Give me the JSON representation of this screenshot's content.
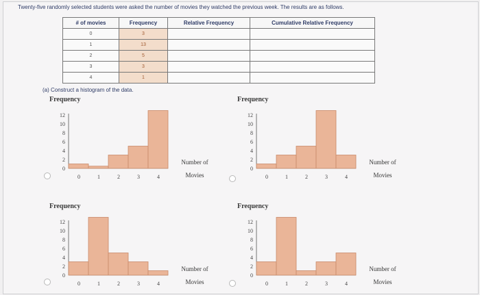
{
  "question": "Twenty-five randomly selected students were asked the number of movies they watched the previous week. The results are as follows.",
  "table": {
    "headers": [
      "# of movies",
      "Frequency",
      "Relative Frequency",
      "Cumulative Relative Frequency"
    ],
    "rows": [
      [
        "0",
        "3",
        "",
        ""
      ],
      [
        "1",
        "13",
        "",
        ""
      ],
      [
        "2",
        "5",
        "",
        ""
      ],
      [
        "3",
        "3",
        "",
        ""
      ],
      [
        "4",
        "1",
        "",
        ""
      ]
    ]
  },
  "part_a": "(a) Construct a histogram of the data.",
  "chart_data": [
    {
      "type": "bar",
      "ylabel": "Frequency",
      "xlabel": "Number of Movies",
      "xlabel_lines": [
        "Number of",
        "Movies"
      ],
      "categories": [
        "0",
        "1",
        "2",
        "3",
        "4"
      ],
      "values": [
        1,
        0.5,
        3,
        5,
        13
      ],
      "ylim": [
        0,
        12
      ],
      "yticks": [
        "12",
        "10",
        "8",
        "6",
        "4",
        "2",
        "0"
      ],
      "xticks": [
        "0",
        "1",
        "2",
        "3",
        "4"
      ]
    },
    {
      "type": "bar",
      "ylabel": "Frequency",
      "xlabel": "Number of Movies",
      "xlabel_lines": [
        "Number of",
        "Movies"
      ],
      "categories": [
        "0",
        "1",
        "2",
        "3",
        "4"
      ],
      "values": [
        1,
        3,
        5,
        13,
        3
      ],
      "ylim": [
        0,
        12
      ],
      "yticks": [
        "12",
        "10",
        "8",
        "6",
        "4",
        "2",
        "0"
      ],
      "xticks": [
        "0",
        "1",
        "2",
        "3",
        "4"
      ]
    },
    {
      "type": "bar",
      "ylabel": "Frequency",
      "xlabel": "Number of Movies",
      "xlabel_lines": [
        "Number of",
        "Movies"
      ],
      "categories": [
        "0",
        "1",
        "2",
        "3",
        "4"
      ],
      "values": [
        3,
        13,
        5,
        3,
        1
      ],
      "ylim": [
        0,
        12
      ],
      "yticks": [
        "12",
        "10",
        "8",
        "6",
        "4",
        "2",
        "0"
      ],
      "xticks": [
        "0",
        "1",
        "2",
        "3",
        "4"
      ]
    },
    {
      "type": "bar",
      "ylabel": "Frequency",
      "xlabel": "Number of Movies",
      "xlabel_lines": [
        "Number of",
        "Movies"
      ],
      "categories": [
        "0",
        "1",
        "2",
        "3",
        "4"
      ],
      "values": [
        3,
        13,
        1,
        3,
        5
      ],
      "ylim": [
        0,
        12
      ],
      "yticks": [
        "12",
        "10",
        "8",
        "6",
        "4",
        "2",
        "0"
      ],
      "xticks": [
        "0",
        "1",
        "2",
        "3",
        "4"
      ]
    }
  ],
  "colors": {
    "bar_fill": "#eab598",
    "bar_stroke": "#c98a6a",
    "header_text": "#2e3b66"
  }
}
